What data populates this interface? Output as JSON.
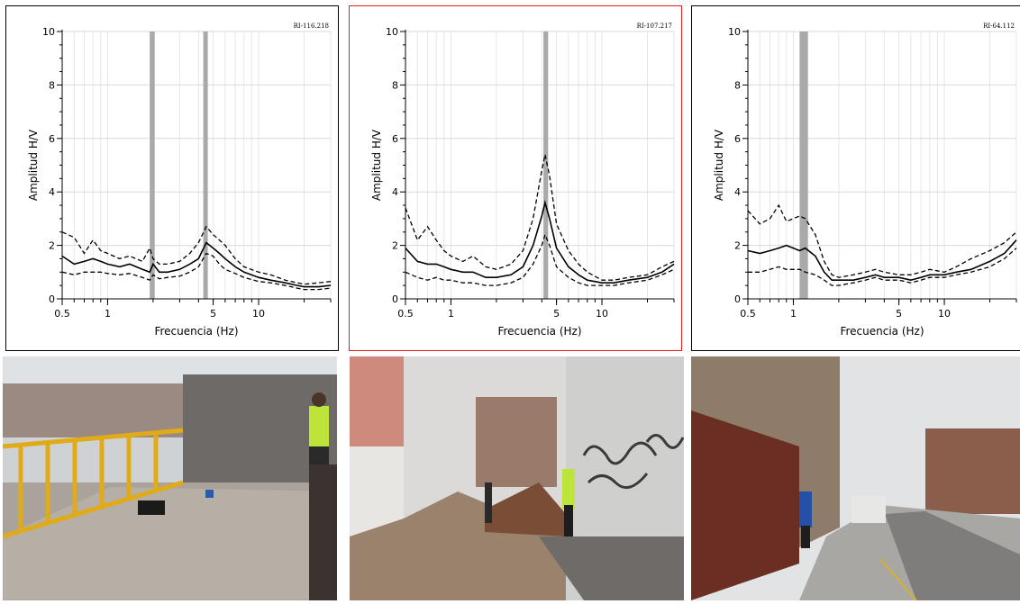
{
  "chart_data": [
    {
      "type": "line",
      "code": "RI-116.218",
      "xlabel": "Frecuencia (Hz)",
      "ylabel": "Amplitud H/V",
      "xscale": "log",
      "xlim": [
        0.5,
        30
      ],
      "ylim": [
        0,
        10
      ],
      "xticks": [
        "0.5",
        "1",
        "5",
        "10"
      ],
      "yticks": [
        "0",
        "2",
        "4",
        "6",
        "8",
        "10"
      ],
      "grid": true,
      "border_color": "#000000",
      "bands": [
        [
          1.9,
          2.05
        ],
        [
          4.3,
          4.6
        ]
      ],
      "x": [
        0.5,
        0.6,
        0.7,
        0.8,
        0.9,
        1.0,
        1.2,
        1.4,
        1.7,
        1.9,
        2.0,
        2.2,
        2.5,
        3.0,
        3.5,
        4.0,
        4.5,
        5.0,
        5.5,
        6.0,
        7.0,
        8.0,
        10,
        12,
        15,
        18,
        20,
        25,
        30
      ],
      "series": [
        {
          "style": "solid",
          "values": [
            1.6,
            1.3,
            1.4,
            1.5,
            1.4,
            1.3,
            1.2,
            1.3,
            1.1,
            1.0,
            1.3,
            1.0,
            1.0,
            1.1,
            1.3,
            1.5,
            2.1,
            1.9,
            1.7,
            1.5,
            1.2,
            1.0,
            0.8,
            0.7,
            0.6,
            0.5,
            0.45,
            0.45,
            0.5
          ]
        },
        {
          "style": "dashed",
          "values": [
            2.5,
            2.3,
            1.7,
            2.2,
            1.8,
            1.7,
            1.5,
            1.6,
            1.4,
            1.9,
            1.5,
            1.3,
            1.3,
            1.4,
            1.7,
            2.1,
            2.7,
            2.4,
            2.2,
            2.0,
            1.5,
            1.2,
            1.0,
            0.9,
            0.7,
            0.6,
            0.55,
            0.6,
            0.65
          ]
        },
        {
          "style": "dashed",
          "values": [
            1.0,
            0.9,
            1.0,
            1.0,
            1.0,
            0.95,
            0.9,
            0.95,
            0.8,
            0.7,
            0.9,
            0.75,
            0.8,
            0.85,
            1.0,
            1.2,
            1.7,
            1.6,
            1.3,
            1.1,
            0.95,
            0.8,
            0.65,
            0.6,
            0.5,
            0.4,
            0.35,
            0.35,
            0.4
          ]
        }
      ]
    },
    {
      "type": "line",
      "code": "RI-107.217",
      "xlabel": "Frecuencia (Hz)",
      "ylabel": "Amplitud H/V",
      "xscale": "log",
      "xlim": [
        0.5,
        30
      ],
      "ylim": [
        0,
        10
      ],
      "xticks": [
        "0.5",
        "1",
        "5",
        "10"
      ],
      "yticks": [
        "0",
        "2",
        "4",
        "6",
        "8",
        "10"
      ],
      "grid": true,
      "border_color": "#e02020",
      "bands": [
        [
          4.1,
          4.4
        ]
      ],
      "x": [
        0.5,
        0.6,
        0.7,
        0.8,
        0.9,
        1.0,
        1.2,
        1.4,
        1.7,
        2.0,
        2.5,
        3.0,
        3.5,
        4.0,
        4.2,
        4.5,
        5.0,
        6.0,
        7.0,
        8.0,
        10,
        12,
        15,
        20,
        25,
        30
      ],
      "series": [
        {
          "style": "solid",
          "values": [
            1.9,
            1.4,
            1.3,
            1.3,
            1.2,
            1.1,
            1.0,
            1.0,
            0.8,
            0.8,
            0.9,
            1.2,
            2.0,
            3.1,
            3.6,
            3.0,
            1.9,
            1.2,
            0.9,
            0.7,
            0.6,
            0.6,
            0.7,
            0.8,
            1.0,
            1.3
          ]
        },
        {
          "style": "dashed",
          "values": [
            3.4,
            2.2,
            2.7,
            2.2,
            1.8,
            1.6,
            1.4,
            1.6,
            1.2,
            1.1,
            1.3,
            1.8,
            3.0,
            4.8,
            5.4,
            4.6,
            2.8,
            1.8,
            1.3,
            1.0,
            0.7,
            0.7,
            0.8,
            0.9,
            1.2,
            1.4
          ]
        },
        {
          "style": "dashed",
          "values": [
            1.0,
            0.8,
            0.7,
            0.8,
            0.7,
            0.7,
            0.6,
            0.6,
            0.5,
            0.5,
            0.6,
            0.8,
            1.3,
            2.0,
            2.4,
            2.0,
            1.2,
            0.8,
            0.6,
            0.5,
            0.5,
            0.5,
            0.6,
            0.7,
            0.9,
            1.1
          ]
        }
      ]
    },
    {
      "type": "line",
      "code": "RI-64.112",
      "xlabel": "Frecuencia (Hz)",
      "ylabel": "Amplitud H/V",
      "xscale": "log",
      "xlim": [
        0.5,
        30
      ],
      "ylim": [
        0,
        10
      ],
      "xticks": [
        "0.5",
        "1",
        "5",
        "10"
      ],
      "yticks": [
        "0",
        "2",
        "4",
        "6",
        "8",
        "10"
      ],
      "grid": true,
      "border_color": "#000000",
      "bands": [
        [
          1.1,
          1.25
        ]
      ],
      "x": [
        0.5,
        0.6,
        0.7,
        0.8,
        0.9,
        1.0,
        1.1,
        1.2,
        1.4,
        1.6,
        1.8,
        2.0,
        2.5,
        3.0,
        3.5,
        4.0,
        5.0,
        6.0,
        7.0,
        8.0,
        10,
        12,
        15,
        20,
        25,
        30
      ],
      "series": [
        {
          "style": "solid",
          "values": [
            1.8,
            1.7,
            1.8,
            1.9,
            2.0,
            1.9,
            1.8,
            1.9,
            1.6,
            1.0,
            0.7,
            0.7,
            0.7,
            0.8,
            0.9,
            0.8,
            0.8,
            0.7,
            0.8,
            0.9,
            0.9,
            1.0,
            1.1,
            1.4,
            1.7,
            2.2
          ]
        },
        {
          "style": "dashed",
          "values": [
            3.3,
            2.8,
            3.0,
            3.5,
            2.9,
            3.0,
            3.1,
            3.0,
            2.4,
            1.4,
            0.9,
            0.8,
            0.9,
            1.0,
            1.1,
            1.0,
            0.9,
            0.9,
            1.0,
            1.1,
            1.0,
            1.2,
            1.5,
            1.8,
            2.1,
            2.5
          ]
        },
        {
          "style": "dashed",
          "values": [
            1.0,
            1.0,
            1.1,
            1.2,
            1.1,
            1.1,
            1.1,
            1.0,
            0.9,
            0.7,
            0.5,
            0.5,
            0.6,
            0.7,
            0.8,
            0.7,
            0.7,
            0.6,
            0.7,
            0.8,
            0.8,
            0.9,
            1.0,
            1.2,
            1.5,
            1.9
          ]
        }
      ]
    }
  ],
  "photos": [
    {
      "icon": "site-photo-1",
      "description_hidden": true
    },
    {
      "icon": "site-photo-2",
      "description_hidden": true
    },
    {
      "icon": "site-photo-3",
      "description_hidden": true
    }
  ]
}
